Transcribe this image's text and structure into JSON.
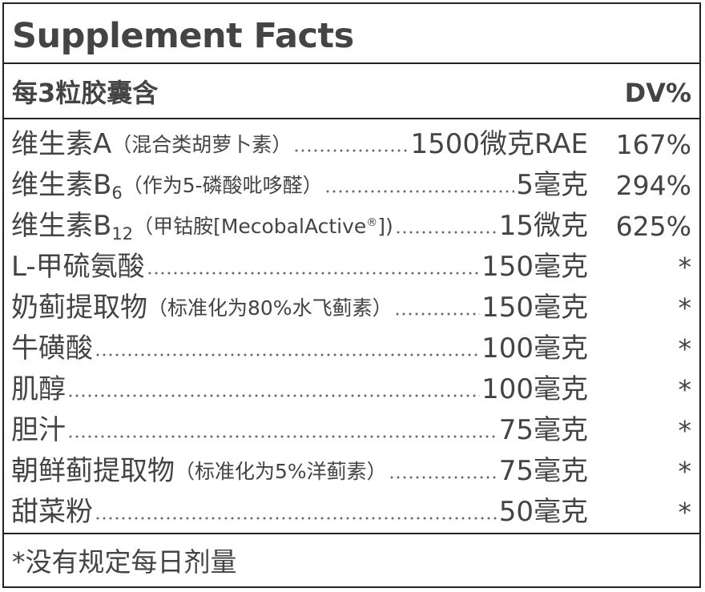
{
  "title": "Supplement Facts",
  "header": {
    "serving": "每3粒胶囊含",
    "dv": "DV%"
  },
  "rows": [
    {
      "name": "维生素A",
      "sub": "",
      "note": "（混合类胡萝卜素）",
      "amount": "1500微克RAE",
      "dv": "167%"
    },
    {
      "name": "维生素B",
      "sub": "6",
      "note": "（作为5-磷酸吡哆醛）",
      "amount": "5毫克",
      "dv": "294%"
    },
    {
      "name": "维生素B",
      "sub": "12",
      "note": "（甲钴胺[MecobalActive",
      "sup": "®",
      "note_end": "])",
      "amount": "15微克",
      "dv": "625%"
    },
    {
      "name": "L-甲硫氨酸",
      "sub": "",
      "note": "",
      "amount": "150毫克",
      "dv": "*"
    },
    {
      "name": "奶蓟提取物",
      "sub": "",
      "note": "（标准化为80%水飞蓟素）",
      "amount": "150毫克",
      "dv": "*"
    },
    {
      "name": "牛磺酸",
      "sub": "",
      "note": "",
      "amount": "100毫克",
      "dv": "*"
    },
    {
      "name": "肌醇",
      "sub": "",
      "note": "",
      "amount": "100毫克",
      "dv": "*"
    },
    {
      "name": "胆汁",
      "sub": "",
      "note": "",
      "amount": "75毫克",
      "dv": "*"
    },
    {
      "name": "朝鲜蓟提取物",
      "sub": "",
      "note": "（标准化为5%洋蓟素）",
      "amount": "75毫克",
      "dv": "*"
    },
    {
      "name": "甜菜粉",
      "sub": "",
      "note": "",
      "amount": "50毫克",
      "dv": "*"
    }
  ],
  "footnote": "*没有规定每日剂量"
}
